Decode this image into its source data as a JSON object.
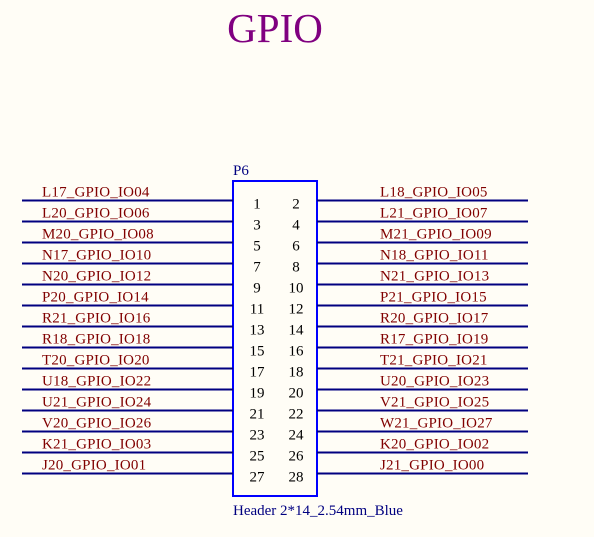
{
  "title": "GPIO",
  "component": {
    "ref": "P6",
    "value": "Header 2*14_2.54mm_Blue"
  },
  "left_nets": [
    {
      "pin": "1",
      "net": "L17_GPIO_IO04"
    },
    {
      "pin": "3",
      "net": "L20_GPIO_IO06"
    },
    {
      "pin": "5",
      "net": "M20_GPIO_IO08"
    },
    {
      "pin": "7",
      "net": "N17_GPIO_IO10"
    },
    {
      "pin": "9",
      "net": "N20_GPIO_IO12"
    },
    {
      "pin": "11",
      "net": "P20_GPIO_IO14"
    },
    {
      "pin": "13",
      "net": "R21_GPIO_IO16"
    },
    {
      "pin": "15",
      "net": "R18_GPIO_IO18"
    },
    {
      "pin": "17",
      "net": "T20_GPIO_IO20"
    },
    {
      "pin": "19",
      "net": "U18_GPIO_IO22"
    },
    {
      "pin": "21",
      "net": "U21_GPIO_IO24"
    },
    {
      "pin": "23",
      "net": "V20_GPIO_IO26"
    },
    {
      "pin": "25",
      "net": "K21_GPIO_IO03"
    },
    {
      "pin": "27",
      "net": "J20_GPIO_IO01"
    }
  ],
  "right_nets": [
    {
      "pin": "2",
      "net": "L18_GPIO_IO05"
    },
    {
      "pin": "4",
      "net": "L21_GPIO_IO07"
    },
    {
      "pin": "6",
      "net": "M21_GPIO_IO09"
    },
    {
      "pin": "8",
      "net": "N18_GPIO_IO11"
    },
    {
      "pin": "10",
      "net": "N21_GPIO_IO13"
    },
    {
      "pin": "12",
      "net": "P21_GPIO_IO15"
    },
    {
      "pin": "14",
      "net": "R20_GPIO_IO17"
    },
    {
      "pin": "16",
      "net": "R17_GPIO_IO19"
    },
    {
      "pin": "18",
      "net": "T21_GPIO_IO21"
    },
    {
      "pin": "20",
      "net": "U20_GPIO_IO23"
    },
    {
      "pin": "22",
      "net": "V21_GPIO_IO25"
    },
    {
      "pin": "24",
      "net": "W21_GPIO_IO27"
    },
    {
      "pin": "26",
      "net": "K20_GPIO_IO02"
    },
    {
      "pin": "28",
      "net": "J21_GPIO_IO00"
    }
  ]
}
